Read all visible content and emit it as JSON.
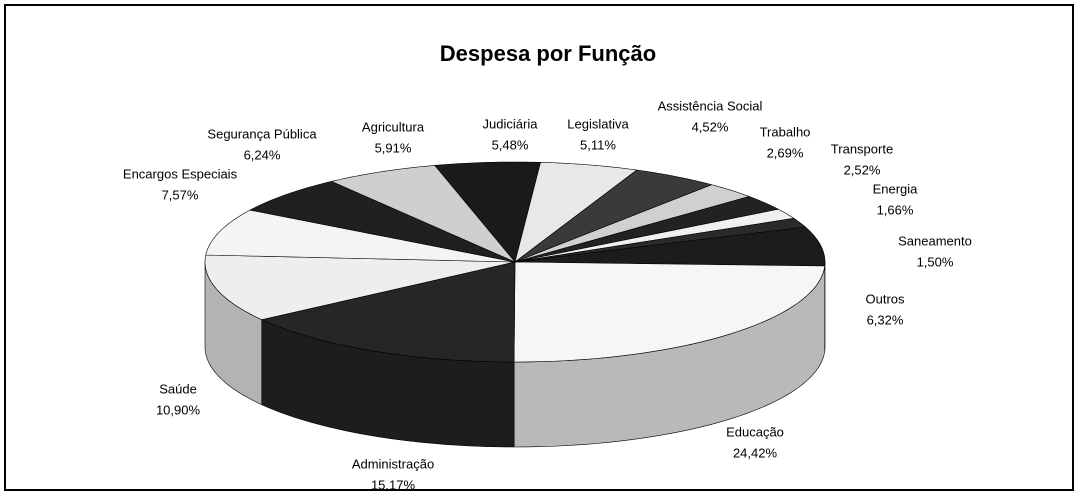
{
  "chart_data": {
    "type": "pie",
    "title": "Despesa por Função",
    "categories": [
      "Judiciária",
      "Legislativa",
      "Assistência Social",
      "Trabalho",
      "Transporte",
      "Energia",
      "Saneamento",
      "Outros",
      "Educação",
      "Administração",
      "Saúde",
      "Encargos Especiais",
      "Segurança Pública",
      "Agricultura"
    ],
    "values": [
      5.48,
      5.11,
      4.52,
      2.69,
      2.52,
      1.66,
      1.5,
      6.32,
      24.42,
      15.17,
      10.9,
      7.57,
      6.24,
      5.91
    ],
    "value_labels": [
      "5,48%",
      "5,11%",
      "4,52%",
      "2,69%",
      "2,52%",
      "1,66%",
      "1,50%",
      "6,32%",
      "24,42%",
      "15,17%",
      "10,90%",
      "7,57%",
      "6,24%",
      "5,91%"
    ],
    "colors": [
      "#1a1a1a",
      "#e8e8e8",
      "#3a3a3a",
      "#d0d0d0",
      "#222222",
      "#f0f0f0",
      "#2a2a2a",
      "#1c1c1c",
      "#f6f6f6",
      "#262626",
      "#eeeeee",
      "#f4f4f4",
      "#202020",
      "#cfcfcf"
    ]
  }
}
